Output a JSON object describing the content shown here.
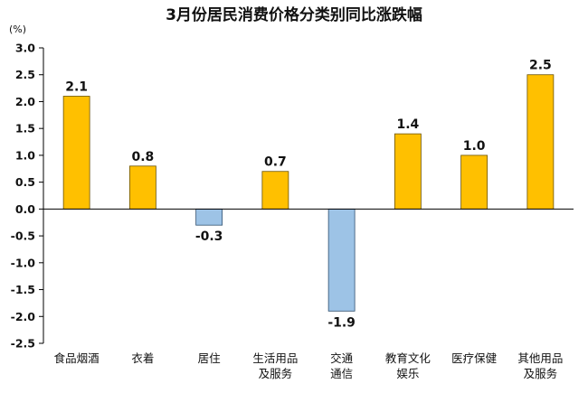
{
  "chart_data": {
    "type": "bar",
    "title": "3月份居民消费价格分类别同比涨跌幅",
    "unit": "(%)",
    "categories": [
      [
        "食品烟酒"
      ],
      [
        "衣着"
      ],
      [
        "居住"
      ],
      [
        "生活用品",
        "及服务"
      ],
      [
        "交通",
        "通信"
      ],
      [
        "教育文化",
        "娱乐"
      ],
      [
        "医疗保健"
      ],
      [
        "其他用品",
        "及服务"
      ]
    ],
    "values": [
      2.1,
      0.8,
      -0.3,
      0.7,
      -1.9,
      1.4,
      1.0,
      2.5
    ],
    "labels": [
      "2.1",
      "0.8",
      "-0.3",
      "0.7",
      "-1.9",
      "1.4",
      "1.0",
      "2.5"
    ],
    "ylim": [
      -2.5,
      3.0
    ],
    "yticks": [
      "3.0",
      "2.5",
      "2.0",
      "1.5",
      "1.0",
      "0.5",
      "0.0",
      "-0.5",
      "-1.0",
      "-1.5",
      "-2.0",
      "-2.5"
    ],
    "ytick_values": [
      3.0,
      2.5,
      2.0,
      1.5,
      1.0,
      0.5,
      0.0,
      -0.5,
      -1.0,
      -1.5,
      -2.0,
      -2.5
    ],
    "grid": false,
    "legend": "none",
    "colors": {
      "positive_fill": "#FFC000",
      "positive_stroke": "#6b5200",
      "negative_fill": "#9DC3E6",
      "negative_stroke": "#2f4f6f",
      "axis": "#000000"
    }
  }
}
